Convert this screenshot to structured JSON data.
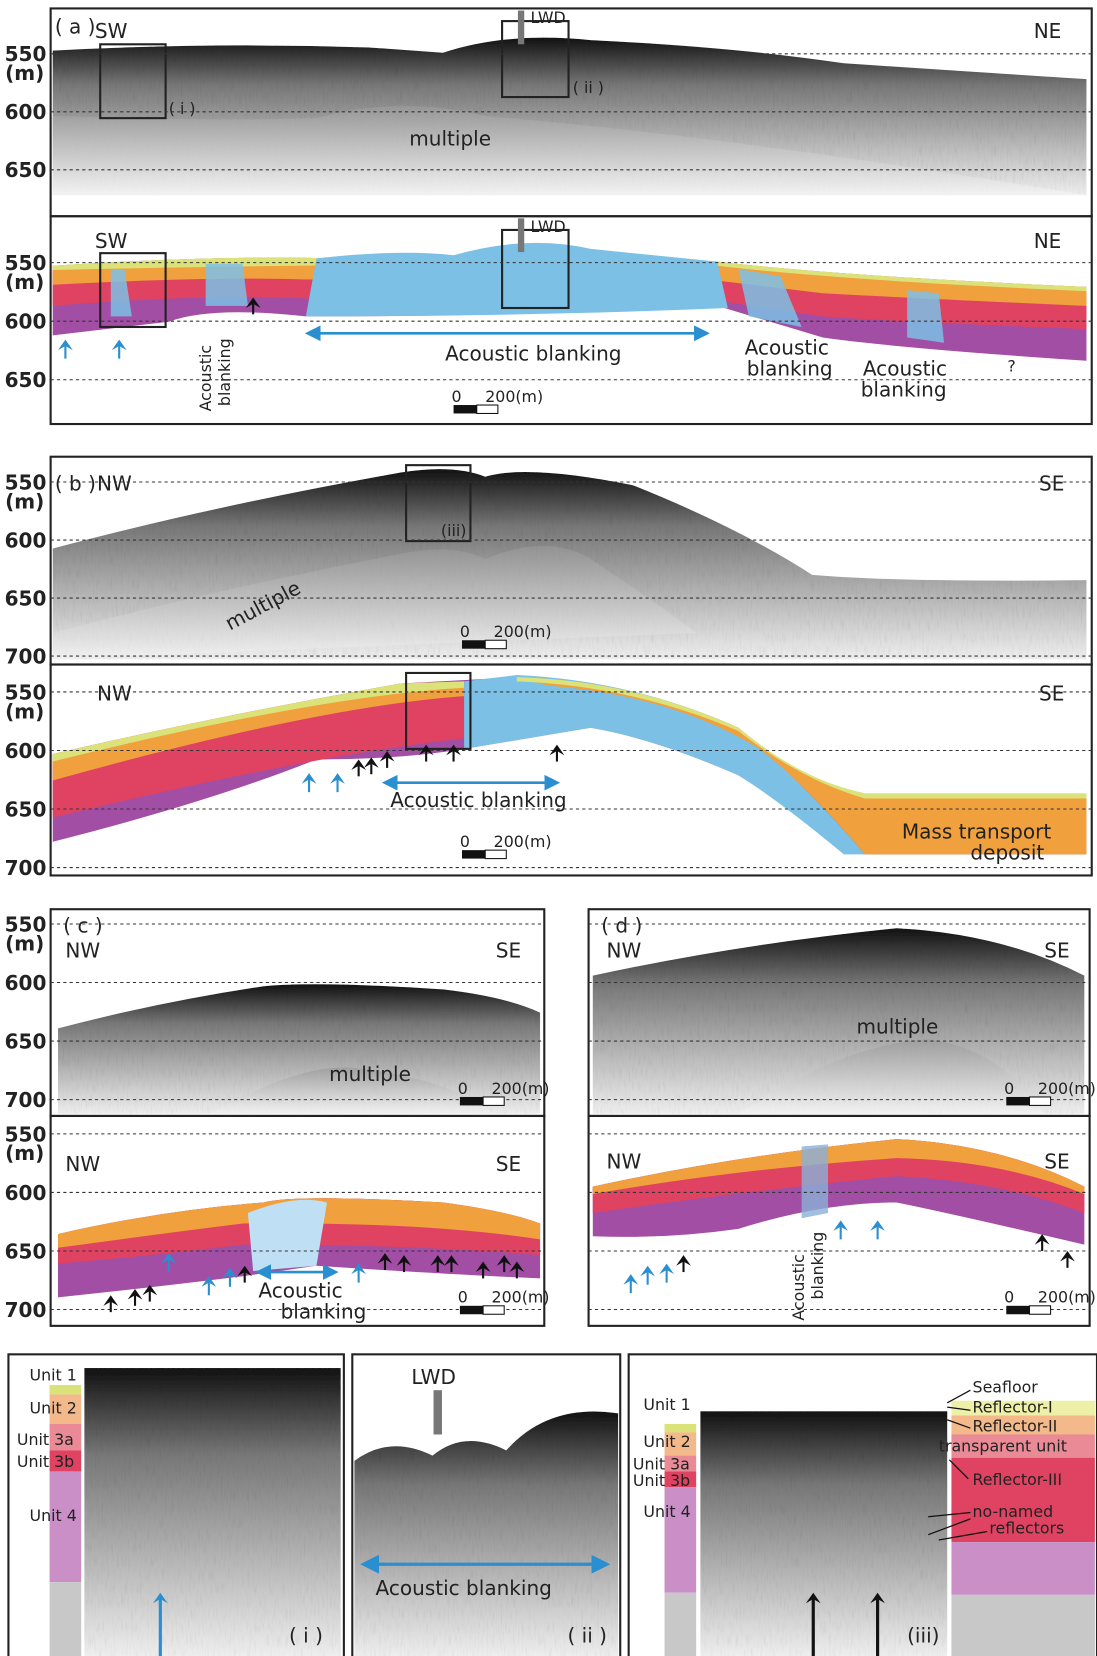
{
  "sections": [
    {
      "label": "( a )",
      "left": "SW",
      "right": "NE",
      "depth_unit": "(m)",
      "depth_ticks": [
        550,
        600,
        650
      ],
      "box_labels": [
        "( i )",
        "( ii )"
      ],
      "lwd": "LWD",
      "multiple": "multiple"
    },
    {
      "left": "SW",
      "right": "NE",
      "depth_unit": "(m)",
      "depth_ticks": [
        550,
        600,
        650
      ],
      "lwd": "LWD",
      "blanking": [
        [
          "Acoustic",
          "blanking"
        ],
        [
          "Acoustic blanking"
        ],
        [
          "Acoustic",
          "blanking"
        ],
        [
          "Acoustic",
          "blanking"
        ]
      ],
      "question": "?",
      "scale": [
        "0",
        "200(m)"
      ]
    },
    {
      "label": "( b )",
      "left": "NW",
      "right": "SE",
      "depth_unit": "(m)",
      "depth_ticks": [
        550,
        600,
        650,
        700
      ],
      "box_label": "(iii)",
      "multiple": "multiple",
      "scale": [
        "0",
        "200(m)"
      ]
    },
    {
      "left": "NW",
      "right": "SE",
      "depth_unit": "(m)",
      "depth_ticks": [
        550,
        600,
        650,
        700
      ],
      "blanking": [
        [
          "Acoustic blanking"
        ]
      ],
      "mtd": [
        "Mass transport",
        "deposit"
      ],
      "scale": [
        "0",
        "200(m)"
      ]
    },
    {
      "label": "( c )",
      "left": "NW",
      "right": "SE",
      "depth_unit": "(m)",
      "depth_ticks": [
        550,
        600,
        650,
        700
      ],
      "multiple": "multiple",
      "scale": [
        "0",
        "200(m)"
      ]
    },
    {
      "left": "NW",
      "right": "SE",
      "depth_unit": "(m)",
      "depth_ticks": [
        550,
        600,
        650,
        700
      ],
      "blanking": [
        [
          "Acoustic",
          "blanking"
        ]
      ],
      "scale": [
        "0",
        "200(m)"
      ]
    },
    {
      "label": "( d )",
      "left": "NW",
      "right": "SE",
      "multiple": "multiple",
      "scale": [
        "0",
        "200(m)"
      ]
    },
    {
      "left": "NW",
      "right": "SE",
      "blanking": [
        [
          "Acoustic",
          "blanking"
        ]
      ],
      "scale": [
        "0",
        "200(m)"
      ]
    }
  ],
  "closeups": {
    "i": {
      "units": [
        "Unit 1",
        "Unit 2",
        "Unit 3a",
        "Unit 3b",
        "Unit 4"
      ],
      "label": "( i )"
    },
    "ii": {
      "lwd": "LWD",
      "blanking": "Acoustic blanking",
      "label": "( ii )"
    },
    "iii": {
      "units": [
        "Unit 1",
        "Unit 2",
        "Unit 3a",
        "Unit 3b",
        "Unit 4"
      ],
      "label": "(iii)",
      "reflectors": [
        "Seafloor",
        "Reflector-I",
        "Reflector-II",
        "transparent unit",
        "Reflector-III"
      ],
      "no_named": [
        "no-named",
        "reflectors"
      ]
    }
  }
}
